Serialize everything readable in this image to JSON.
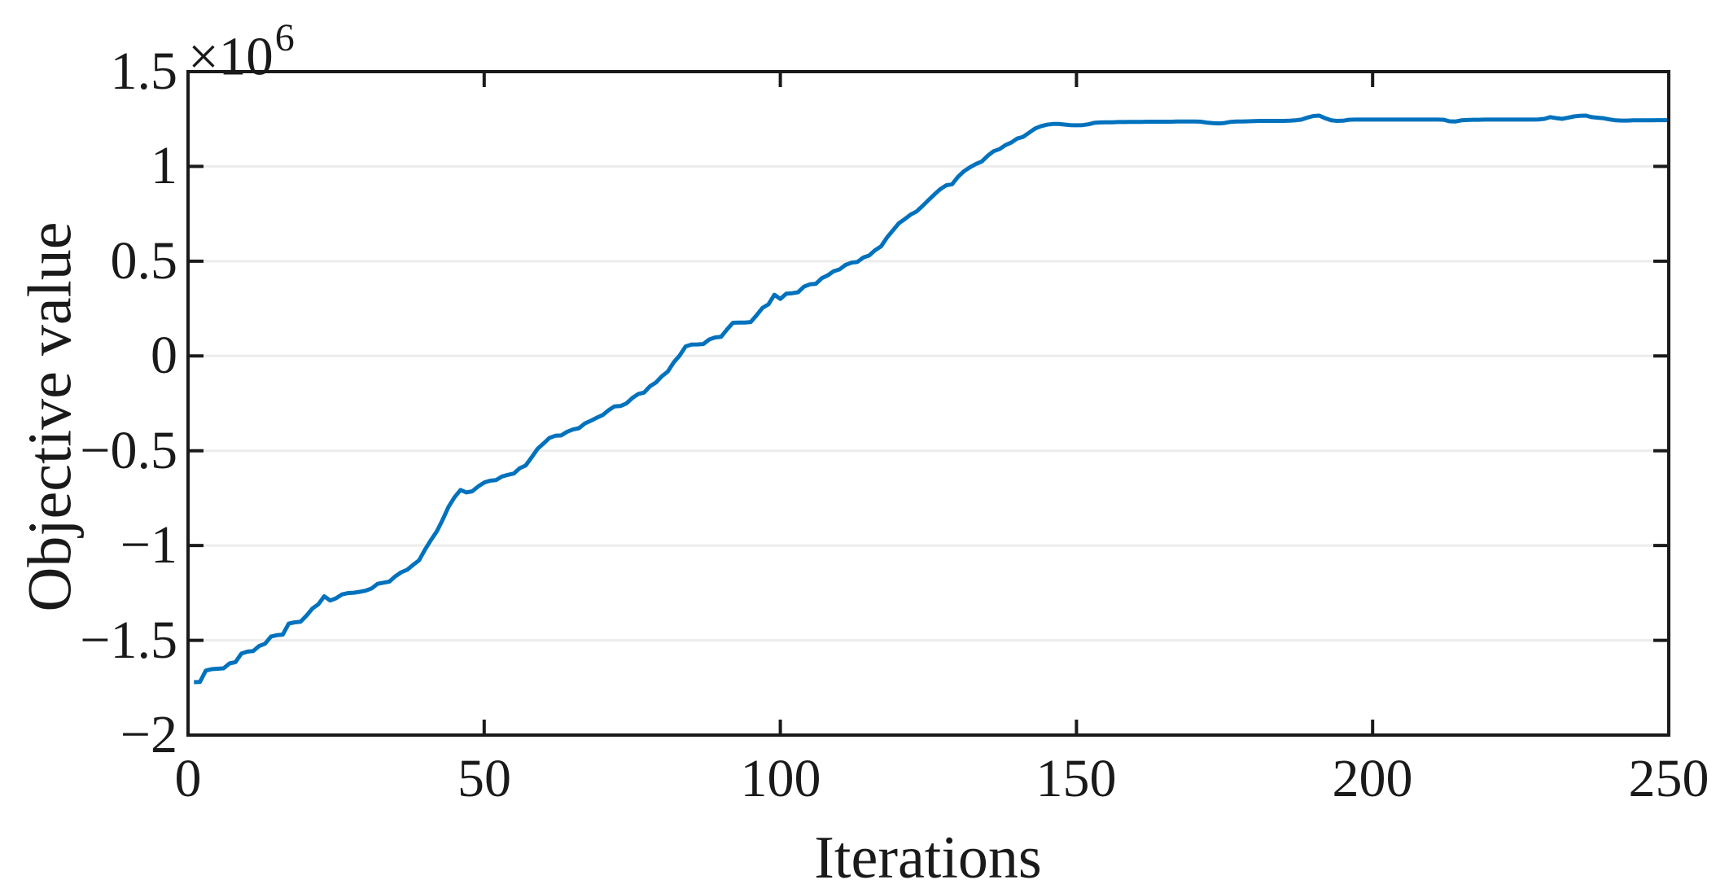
{
  "figure": {
    "background_color": "#ffffff",
    "axes_color": "#1a1a1a",
    "grid_color": "#ececec",
    "line_color": "#0072BD",
    "x_axis": {
      "label": "Iterations",
      "ticks": [
        "0",
        "50",
        "100",
        "150",
        "200",
        "250"
      ],
      "tick_values": [
        0,
        50,
        100,
        150,
        200,
        250
      ]
    },
    "y_axis": {
      "label": "Objective value",
      "exponent_base": "×10",
      "exponent_power": "6",
      "ticks": [
        "1.5",
        "1",
        "0.5",
        "0",
        "−0.5",
        "−1",
        "−1.5",
        "−2"
      ],
      "tick_values": [
        1.5,
        1,
        0.5,
        0,
        -0.5,
        -1,
        -1.5,
        -2
      ]
    }
  },
  "chart_data": {
    "type": "line",
    "title": "",
    "xlabel": "Iterations",
    "ylabel": "Objective value",
    "xlim": [
      0,
      250
    ],
    "ylim": [
      -2,
      1.5
    ],
    "y_unit_multiplier": 1000000,
    "y_unit_label": "×10^6",
    "grid": "y-only",
    "legend": "none",
    "series": [
      {
        "name": "objective-value",
        "color": "#0072BD",
        "x": {
          "start": 1,
          "step": 1
        },
        "y_e6": [
          -1.721,
          -1.72,
          -1.66,
          -1.652,
          -1.65,
          -1.648,
          -1.622,
          -1.615,
          -1.57,
          -1.56,
          -1.557,
          -1.53,
          -1.518,
          -1.48,
          -1.473,
          -1.47,
          -1.412,
          -1.405,
          -1.402,
          -1.37,
          -1.332,
          -1.31,
          -1.268,
          -1.29,
          -1.278,
          -1.258,
          -1.251,
          -1.249,
          -1.244,
          -1.238,
          -1.226,
          -1.202,
          -1.196,
          -1.19,
          -1.162,
          -1.141,
          -1.128,
          -1.102,
          -1.078,
          -1.022,
          -0.972,
          -0.925,
          -0.863,
          -0.795,
          -0.745,
          -0.707,
          -0.72,
          -0.714,
          -0.688,
          -0.668,
          -0.658,
          -0.655,
          -0.636,
          -0.627,
          -0.62,
          -0.592,
          -0.578,
          -0.535,
          -0.49,
          -0.462,
          -0.433,
          -0.421,
          -0.419,
          -0.4,
          -0.388,
          -0.381,
          -0.356,
          -0.342,
          -0.326,
          -0.312,
          -0.286,
          -0.266,
          -0.264,
          -0.251,
          -0.222,
          -0.201,
          -0.193,
          -0.16,
          -0.14,
          -0.107,
          -0.082,
          -0.034,
          0.002,
          0.05,
          0.06,
          0.061,
          0.063,
          0.087,
          0.098,
          0.101,
          0.14,
          0.175,
          0.176,
          0.176,
          0.179,
          0.215,
          0.254,
          0.272,
          0.323,
          0.301,
          0.329,
          0.331,
          0.336,
          0.366,
          0.378,
          0.381,
          0.41,
          0.425,
          0.447,
          0.457,
          0.48,
          0.492,
          0.496,
          0.519,
          0.53,
          0.558,
          0.578,
          0.625,
          0.662,
          0.7,
          0.722,
          0.746,
          0.762,
          0.791,
          0.822,
          0.852,
          0.88,
          0.9,
          0.906,
          0.945,
          0.975,
          0.995,
          1.012,
          1.026,
          1.056,
          1.08,
          1.091,
          1.112,
          1.126,
          1.147,
          1.156,
          1.178,
          1.2,
          1.212,
          1.22,
          1.224,
          1.224,
          1.221,
          1.218,
          1.217,
          1.218,
          1.222,
          1.23,
          1.232,
          1.233,
          1.233,
          1.234,
          1.234,
          1.235,
          1.235,
          1.235,
          1.236,
          1.236,
          1.236,
          1.236,
          1.236,
          1.237,
          1.237,
          1.237,
          1.237,
          1.236,
          1.231,
          1.228,
          1.227,
          1.229,
          1.235,
          1.237,
          1.237,
          1.238,
          1.239,
          1.24,
          1.24,
          1.24,
          1.24,
          1.24,
          1.241,
          1.243,
          1.247,
          1.258,
          1.266,
          1.268,
          1.254,
          1.243,
          1.24,
          1.241,
          1.246,
          1.247,
          1.247,
          1.247,
          1.247,
          1.247,
          1.247,
          1.247,
          1.247,
          1.247,
          1.247,
          1.247,
          1.247,
          1.247,
          1.247,
          1.247,
          1.246,
          1.238,
          1.237,
          1.243,
          1.245,
          1.246,
          1.246,
          1.247,
          1.247,
          1.247,
          1.247,
          1.247,
          1.247,
          1.247,
          1.247,
          1.247,
          1.248,
          1.251,
          1.26,
          1.255,
          1.251,
          1.257,
          1.264,
          1.267,
          1.268,
          1.26,
          1.257,
          1.254,
          1.248,
          1.243,
          1.242,
          1.242,
          1.243,
          1.243,
          1.243,
          1.243,
          1.244,
          1.244,
          1.244
        ]
      }
    ]
  }
}
